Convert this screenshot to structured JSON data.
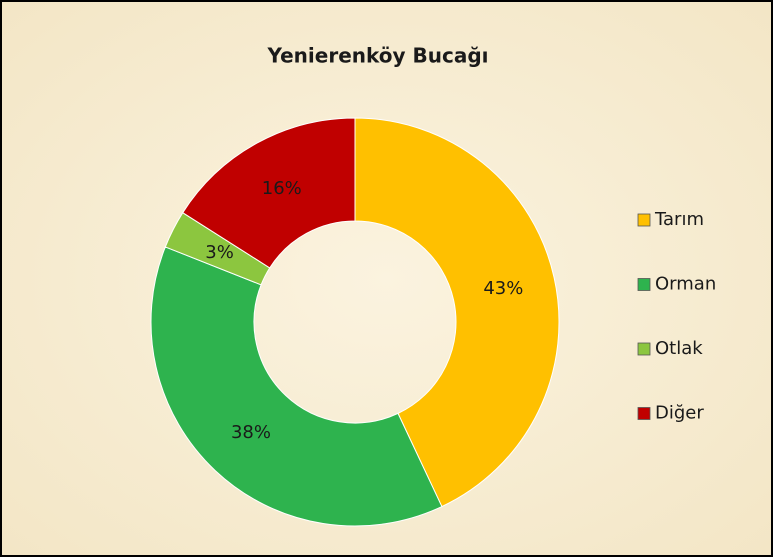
{
  "chart_data": {
    "type": "donut",
    "title": "Yenierenköy Bucağı",
    "categories": [
      "Tarım",
      "Orman",
      "Otlak",
      "Diğer"
    ],
    "values": [
      43,
      38,
      3,
      16
    ],
    "value_labels": [
      "43%",
      "38%",
      "3%",
      "16%"
    ],
    "colors": [
      "#ffc000",
      "#2eb34e",
      "#8cc63f",
      "#c00000"
    ],
    "legend": "right"
  }
}
